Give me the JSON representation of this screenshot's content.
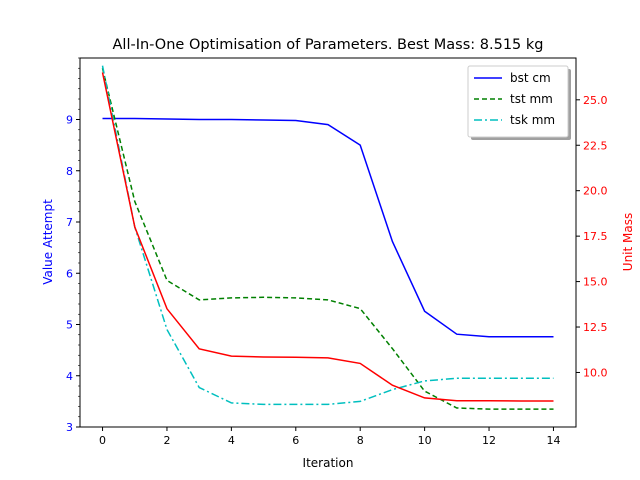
{
  "chart_data": {
    "type": "line",
    "title": "All-In-One Optimisation of Parameters. Best Mass: 8.515 kg",
    "xlabel": "Iteration",
    "ylabel_left": "Value Attempt",
    "ylabel_right": "Unit Mass",
    "xlim": [
      -0.7,
      14.7
    ],
    "ylim_left": [
      3,
      10.2
    ],
    "ylim_right": [
      7.0,
      27.3
    ],
    "x_ticks": [
      0,
      2,
      4,
      6,
      8,
      10,
      12,
      14
    ],
    "y_left_ticks": [
      3,
      4,
      5,
      6,
      7,
      8,
      9
    ],
    "y_right_ticks": [
      "10.0",
      "12.5",
      "15.0",
      "17.5",
      "20.0",
      "22.5",
      "25.0"
    ],
    "x": [
      0,
      1,
      2,
      3,
      4,
      5,
      6,
      7,
      8,
      9,
      10,
      11,
      12,
      13,
      14
    ],
    "series": [
      {
        "name": "bst cm",
        "axis": "left",
        "style": "solid",
        "color": "#0000ff",
        "values": [
          9.02,
          9.02,
          9.01,
          9.0,
          9.0,
          8.99,
          8.98,
          8.9,
          8.5,
          6.62,
          5.26,
          4.81,
          4.76,
          4.76,
          4.76
        ]
      },
      {
        "name": "tst mm",
        "axis": "left",
        "style": "dashed",
        "color": "#008000",
        "values": [
          10.0,
          7.4,
          5.86,
          5.48,
          5.52,
          5.53,
          5.52,
          5.48,
          5.31,
          4.53,
          3.7,
          3.37,
          3.35,
          3.35,
          3.35
        ]
      },
      {
        "name": "tsk mm",
        "axis": "left",
        "style": "dashdot",
        "color": "#00bfbf",
        "values": [
          10.05,
          6.9,
          4.9,
          3.77,
          3.47,
          3.44,
          3.44,
          3.44,
          3.5,
          3.73,
          3.9,
          3.95,
          3.95,
          3.95,
          3.95
        ]
      },
      {
        "name": "",
        "axis": "right",
        "style": "solid",
        "color": "#ff0000",
        "values": [
          26.5,
          18.0,
          13.5,
          11.3,
          10.9,
          10.85,
          10.84,
          10.8,
          10.5,
          9.3,
          8.6,
          8.44,
          8.44,
          8.43,
          8.43
        ]
      }
    ],
    "legend": {
      "position": "top-right"
    },
    "grid": false,
    "colors": {
      "left_axis": "#0000ff",
      "right_axis": "#ff0000",
      "frame": "#000000"
    }
  }
}
